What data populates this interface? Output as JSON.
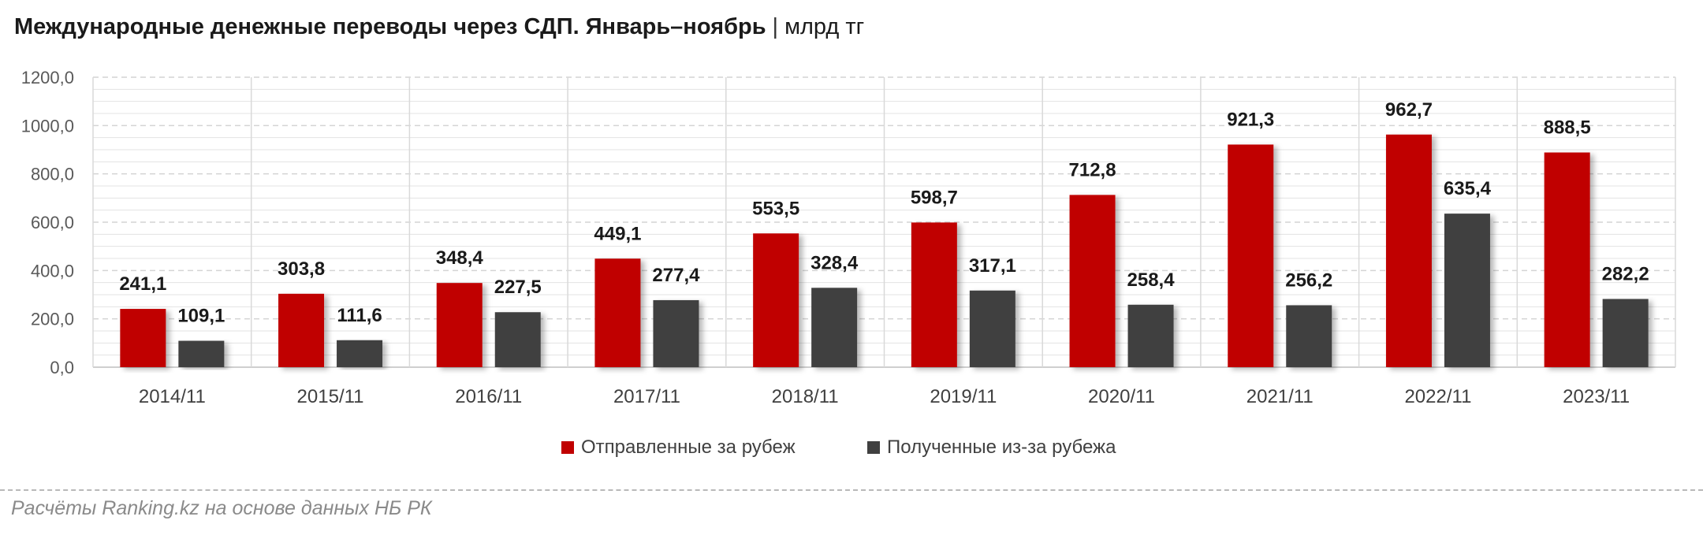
{
  "header": {
    "title": "Международные денежные переводы через СДП. Январь–ноябрь",
    "separator": "|",
    "unit": "млрд тг"
  },
  "footer": {
    "source": "Расчёты Ranking.kz на основе данных НБ РК"
  },
  "chart_data": {
    "type": "bar",
    "categories": [
      "2014/11",
      "2015/11",
      "2016/11",
      "2017/11",
      "2018/11",
      "2019/11",
      "2020/11",
      "2021/11",
      "2022/11",
      "2023/11"
    ],
    "series": [
      {
        "name": "Отправленные за рубеж",
        "color": "#c00000",
        "values": [
          241.1,
          303.8,
          348.4,
          449.1,
          553.5,
          598.7,
          712.8,
          921.3,
          962.7,
          888.5
        ],
        "labels": [
          "241,1",
          "303,8",
          "348,4",
          "449,1",
          "553,5",
          "598,7",
          "712,8",
          "921,3",
          "962,7",
          "888,5"
        ]
      },
      {
        "name": "Полученные из-за рубежа",
        "color": "#404040",
        "values": [
          109.1,
          111.6,
          227.5,
          277.4,
          328.4,
          317.1,
          258.4,
          256.2,
          635.4,
          282.2
        ],
        "labels": [
          "109,1",
          "111,6",
          "227,5",
          "277,4",
          "328,4",
          "317,1",
          "258,4",
          "256,2",
          "635,4",
          "282,2"
        ]
      }
    ],
    "ylim": [
      0,
      1200
    ],
    "y_ticks": [
      0,
      200,
      400,
      600,
      800,
      1000,
      1200
    ],
    "y_tick_labels": [
      "0,0",
      "200,0",
      "400,0",
      "600,0",
      "800,0",
      "1000,0",
      "1200,0"
    ],
    "grid": true,
    "legend_position": "bottom-center"
  }
}
